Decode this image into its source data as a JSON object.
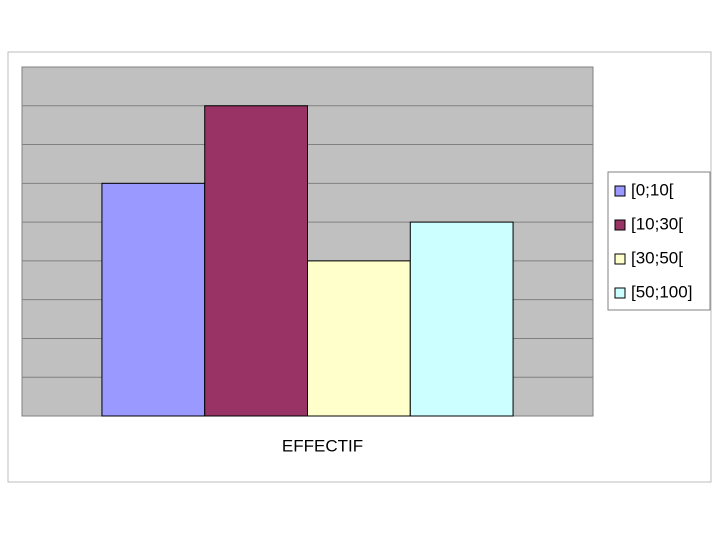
{
  "chart_data": {
    "type": "bar",
    "categories": [
      "EFFECTIF"
    ],
    "series": [
      {
        "name": "[0;10[",
        "color": "#9999ff",
        "values": [
          6
        ]
      },
      {
        "name": "[10;30[",
        "color": "#993366",
        "values": [
          8
        ]
      },
      {
        "name": "[30;50[",
        "color": "#ffffcc",
        "values": [
          4
        ]
      },
      {
        "name": "[50;100]",
        "color": "#ccffff",
        "values": [
          5
        ]
      }
    ],
    "ylim": [
      0,
      9
    ],
    "yticks": [
      0,
      1,
      2,
      3,
      4,
      5,
      6,
      7,
      8,
      9
    ],
    "grid": true,
    "legend": "right"
  }
}
